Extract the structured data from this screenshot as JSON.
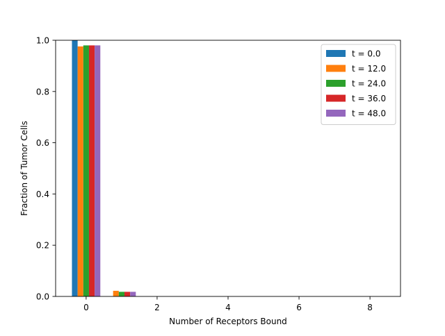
{
  "chart_data": {
    "type": "bar",
    "xlabel": "Number of Receptors Bound",
    "ylabel": "Fraction of Tumor Cells",
    "xlim": [
      -0.86,
      8.86
    ],
    "ylim": [
      0,
      1.0
    ],
    "xticks": [
      0,
      2,
      4,
      6,
      8
    ],
    "yticks": [
      0.0,
      0.2,
      0.4,
      0.6,
      0.8,
      1.0
    ],
    "xtick_labels": [
      "0",
      "2",
      "4",
      "6",
      "8"
    ],
    "ytick_labels": [
      "0.0",
      "0.2",
      "0.4",
      "0.6",
      "0.8",
      "1.0"
    ],
    "categories": [
      0,
      1,
      2,
      3,
      4,
      5,
      6,
      7,
      8
    ],
    "bar_group_width": 0.8,
    "grid": false,
    "legend_position": "top-right",
    "series": [
      {
        "name": "t = 0.0",
        "color": "#1f77b4",
        "values": [
          1.0,
          0.0,
          0,
          0,
          0,
          0,
          0,
          0,
          0
        ]
      },
      {
        "name": "t = 12.0",
        "color": "#ff7f0e",
        "values": [
          0.976,
          0.022,
          0,
          0,
          0,
          0,
          0,
          0,
          0
        ]
      },
      {
        "name": "t = 24.0",
        "color": "#2ca02c",
        "values": [
          0.98,
          0.018,
          0,
          0,
          0,
          0,
          0,
          0,
          0
        ]
      },
      {
        "name": "t = 36.0",
        "color": "#d62728",
        "values": [
          0.98,
          0.018,
          0,
          0,
          0,
          0,
          0,
          0,
          0
        ]
      },
      {
        "name": "t = 48.0",
        "color": "#9467bd",
        "values": [
          0.98,
          0.018,
          0,
          0,
          0,
          0,
          0,
          0,
          0
        ]
      }
    ]
  }
}
